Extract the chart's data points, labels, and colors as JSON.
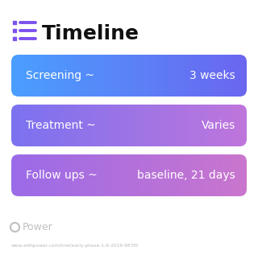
{
  "title": "Timeline",
  "title_fontsize": 18,
  "title_color": "#111111",
  "icon_color": "#7B52EE",
  "background_color": "#ffffff",
  "rows": [
    {
      "label_left": "Screening ~",
      "label_right": "3 weeks",
      "color_left": "#4A9FFF",
      "color_right": "#6B66F0"
    },
    {
      "label_left": "Treatment ~",
      "label_right": "Varies",
      "color_left": "#7B72F0",
      "color_right": "#BF76DC"
    },
    {
      "label_left": "Follow ups ~",
      "label_right": "baseline, 21 days",
      "color_left": "#9B6BE8",
      "color_right": "#CA76CE"
    }
  ],
  "watermark_text": "Power",
  "watermark_color": "#c0c0c0",
  "url_text": "www.withpower.com/trial/early-phase-1-8-2019-983f0",
  "url_color": "#bbbbbb",
  "font_color_white": "#ffffff"
}
